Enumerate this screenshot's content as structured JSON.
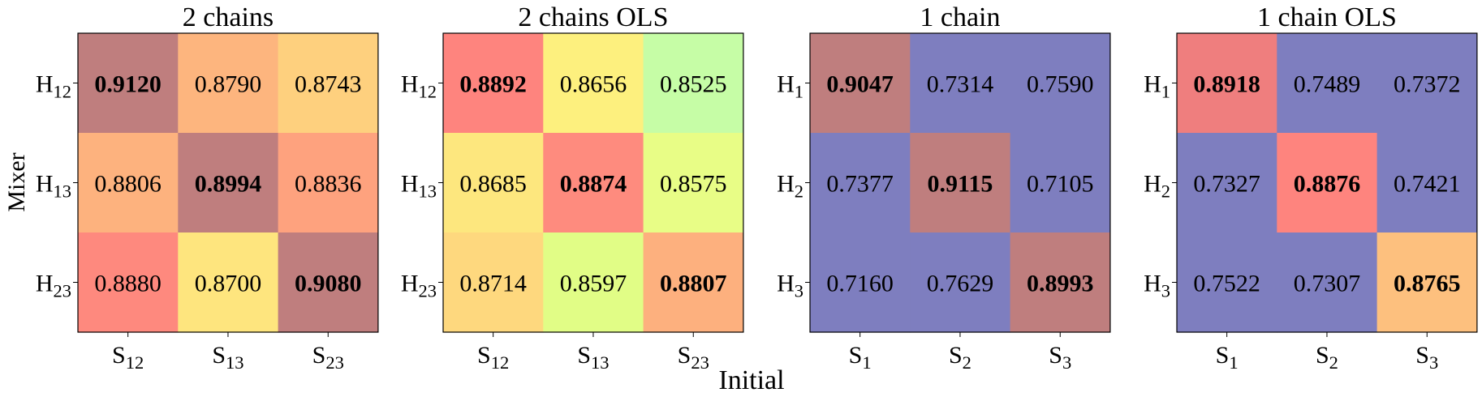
{
  "figure": {
    "xlabel": "Initial",
    "ylabel": "Mixer"
  },
  "chart_data": [
    {
      "type": "heatmap",
      "title": "2 chains",
      "rows": [
        {
          "base": "H",
          "sub": "12"
        },
        {
          "base": "H",
          "sub": "13"
        },
        {
          "base": "H",
          "sub": "23"
        }
      ],
      "cols": [
        {
          "base": "S",
          "sub": "12"
        },
        {
          "base": "S",
          "sub": "13"
        },
        {
          "base": "S",
          "sub": "23"
        }
      ],
      "values": [
        [
          "0.9120",
          "0.8790",
          "0.8743"
        ],
        [
          "0.8806",
          "0.8994",
          "0.8836"
        ],
        [
          "0.8880",
          "0.8700",
          "0.9080"
        ]
      ],
      "colors": [
        [
          "#bf7e7e",
          "#fdb57e",
          "#fed07e"
        ],
        [
          "#fdb27e",
          "#bf7e7e",
          "#fea27e"
        ],
        [
          "#fe897e",
          "#fee57e",
          "#bf7e7e"
        ]
      ]
    },
    {
      "type": "heatmap",
      "title": "2 chains OLS",
      "rows": [
        {
          "base": "H",
          "sub": "12"
        },
        {
          "base": "H",
          "sub": "13"
        },
        {
          "base": "H",
          "sub": "23"
        }
      ],
      "cols": [
        {
          "base": "S",
          "sub": "12"
        },
        {
          "base": "S",
          "sub": "13"
        },
        {
          "base": "S",
          "sub": "23"
        }
      ],
      "values": [
        [
          "0.8892",
          "0.8656",
          "0.8525"
        ],
        [
          "0.8685",
          "0.8874",
          "0.8575"
        ],
        [
          "0.8714",
          "0.8597",
          "0.8807"
        ]
      ],
      "colors": [
        [
          "#fe847e",
          "#fdf07e",
          "#c6fda6"
        ],
        [
          "#fde77e",
          "#fe8b7e",
          "#e8fd86"
        ],
        [
          "#fed87e",
          "#e1fd86",
          "#fdb07e"
        ]
      ]
    },
    {
      "type": "heatmap",
      "title": "1 chain",
      "rows": [
        {
          "base": "H",
          "sub": "1"
        },
        {
          "base": "H",
          "sub": "2"
        },
        {
          "base": "H",
          "sub": "3"
        }
      ],
      "cols": [
        {
          "base": "S",
          "sub": "1"
        },
        {
          "base": "S",
          "sub": "2"
        },
        {
          "base": "S",
          "sub": "3"
        }
      ],
      "values": [
        [
          "0.9047",
          "0.7314",
          "0.7590"
        ],
        [
          "0.7377",
          "0.9115",
          "0.7105"
        ],
        [
          "0.7160",
          "0.7629",
          "0.8993"
        ]
      ],
      "colors": [
        [
          "#bf7e7e",
          "#7e7ebf",
          "#7e7ebf"
        ],
        [
          "#7e7ebf",
          "#bf7e7e",
          "#7e7ebf"
        ],
        [
          "#7e7ebf",
          "#7e7ebf",
          "#bf7e7e"
        ]
      ]
    },
    {
      "type": "heatmap",
      "title": "1 chain OLS",
      "rows": [
        {
          "base": "H",
          "sub": "1"
        },
        {
          "base": "H",
          "sub": "2"
        },
        {
          "base": "H",
          "sub": "3"
        }
      ],
      "cols": [
        {
          "base": "S",
          "sub": "1"
        },
        {
          "base": "S",
          "sub": "2"
        },
        {
          "base": "S",
          "sub": "3"
        }
      ],
      "values": [
        [
          "0.8918",
          "0.7489",
          "0.7372"
        ],
        [
          "0.7327",
          "0.8876",
          "0.7421"
        ],
        [
          "0.7522",
          "0.7307",
          "0.8765"
        ]
      ],
      "colors": [
        [
          "#ef7e7e",
          "#7e7ebf",
          "#7e7ebf"
        ],
        [
          "#7e7ebf",
          "#fe847e",
          "#7e7ebf"
        ],
        [
          "#7e7ebf",
          "#7e7ebf",
          "#fdc07e"
        ]
      ]
    }
  ]
}
